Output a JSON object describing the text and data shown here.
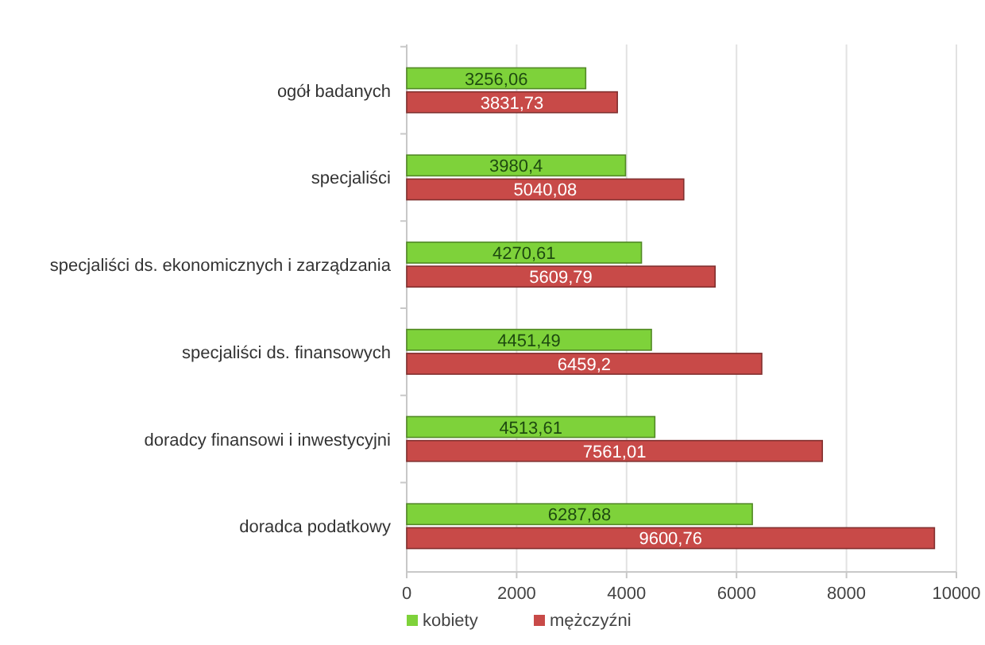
{
  "chart_data": {
    "type": "bar",
    "orientation": "horizontal",
    "categories": [
      "ogół badanych",
      "specjaliści",
      "specjaliści ds. ekonomicznych i zarządzania",
      "specjaliści ds. finansowych",
      "doradcy finansowi i inwestycyjni",
      "doradca podatkowy"
    ],
    "series": [
      {
        "name": "kobiety",
        "color": "#7ed23a",
        "values": [
          3256.06,
          3980.4,
          4270.61,
          4451.49,
          4513.61,
          6287.68
        ],
        "value_labels": [
          "3256,06",
          "3980,4",
          "4270,61",
          "4451,49",
          "4513,61",
          "6287,68"
        ]
      },
      {
        "name": "mężczyźni",
        "color": "#c84a48",
        "values": [
          3831.73,
          5040.08,
          5609.79,
          6459.2,
          7561.01,
          9600.76
        ],
        "value_labels": [
          "3831,73",
          "5040,08",
          "5609,79",
          "6459,2",
          "7561,01",
          "9600,76"
        ]
      }
    ],
    "xlim": [
      0,
      10000
    ],
    "xticks": [
      0,
      2000,
      4000,
      6000,
      8000,
      10000
    ],
    "grid": "x",
    "legend": "bottom left"
  }
}
